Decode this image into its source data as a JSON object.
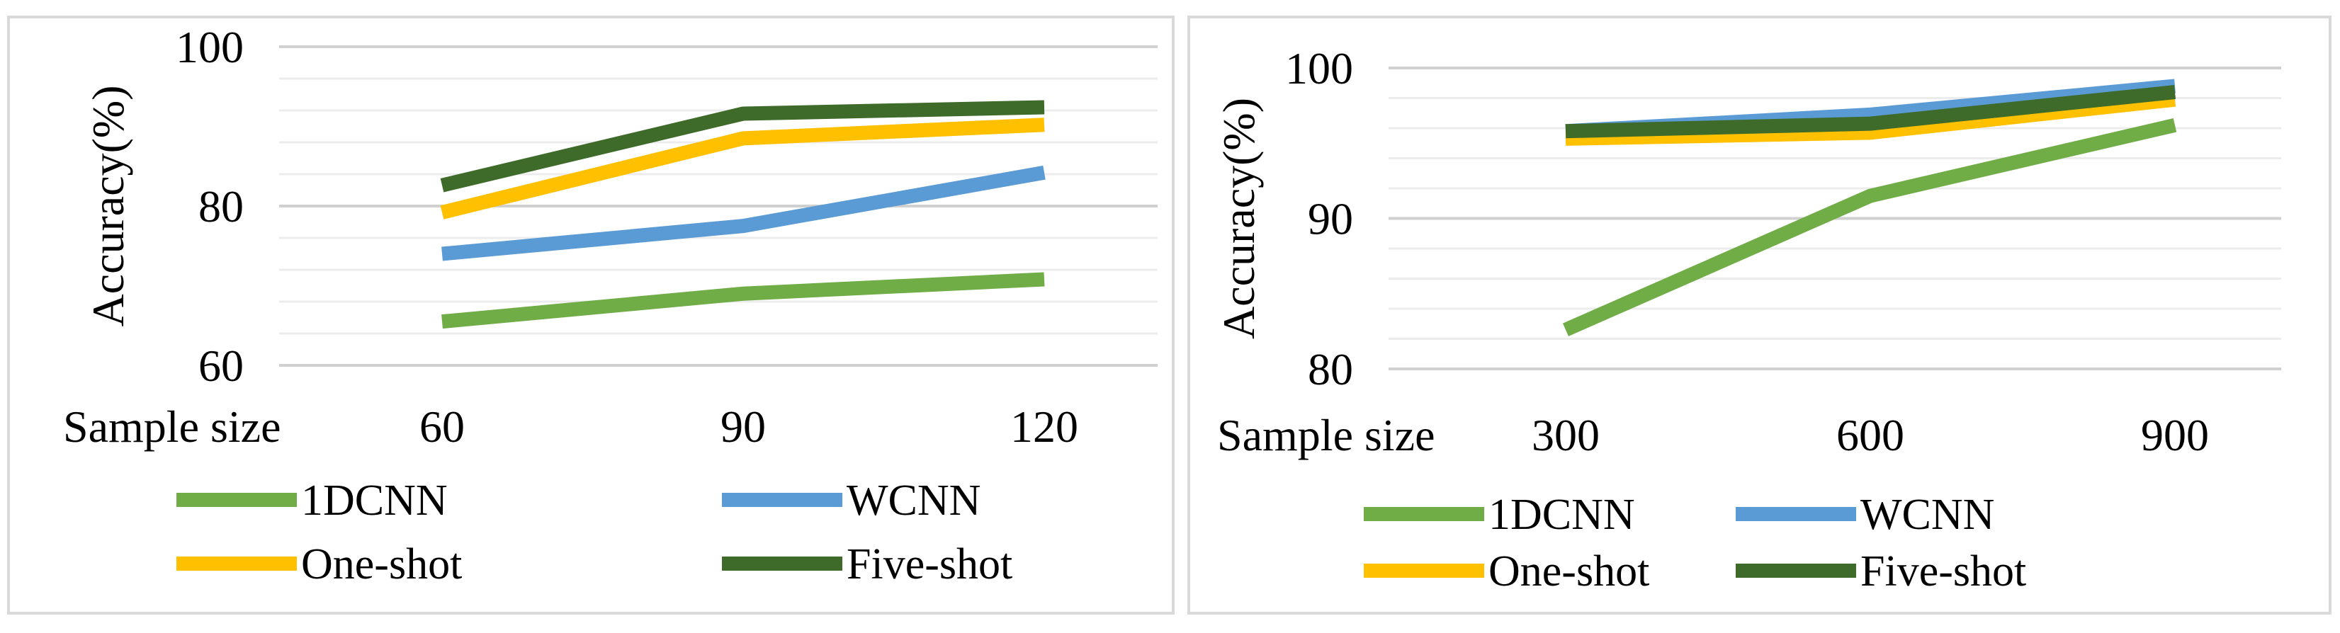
{
  "colors": {
    "1DCNN": "#70ad47",
    "WCNN": "#5b9bd5",
    "One-shot": "#ffc000",
    "Five-shot": "#3f6b2a",
    "grid_major": "#d0d0d0",
    "grid_minor": "#ececec",
    "panel_border": "#d9d9d9"
  },
  "chart_data": [
    {
      "type": "line",
      "xlabel": "Sample size",
      "ylabel": "Accuracy(%)",
      "categories": [
        "60",
        "90",
        "120"
      ],
      "ylim": [
        60,
        100
      ],
      "yticks": [
        "60",
        "80",
        "100"
      ],
      "grid": true,
      "legend_position": "bottom",
      "series": [
        {
          "name": "1DCNN",
          "values": [
            65.5,
            69.0,
            70.8
          ]
        },
        {
          "name": "WCNN",
          "values": [
            74.0,
            77.5,
            84.2
          ]
        },
        {
          "name": "One-shot",
          "values": [
            79.2,
            88.5,
            90.2
          ]
        },
        {
          "name": "Five-shot",
          "values": [
            82.6,
            91.6,
            92.4
          ]
        }
      ]
    },
    {
      "type": "line",
      "xlabel": "Sample size",
      "ylabel": "Accuracy(%)",
      "categories": [
        "300",
        "600",
        "900"
      ],
      "ylim": [
        80,
        100
      ],
      "yticks": [
        "80",
        "90",
        "100"
      ],
      "grid": true,
      "legend_position": "bottom",
      "series": [
        {
          "name": "1DCNN",
          "values": [
            82.6,
            91.5,
            96.2
          ]
        },
        {
          "name": "WCNN",
          "values": [
            95.8,
            96.9,
            98.8
          ]
        },
        {
          "name": "One-shot",
          "values": [
            95.3,
            95.7,
            97.9
          ]
        },
        {
          "name": "Five-shot",
          "values": [
            95.8,
            96.3,
            98.4
          ]
        }
      ]
    }
  ]
}
